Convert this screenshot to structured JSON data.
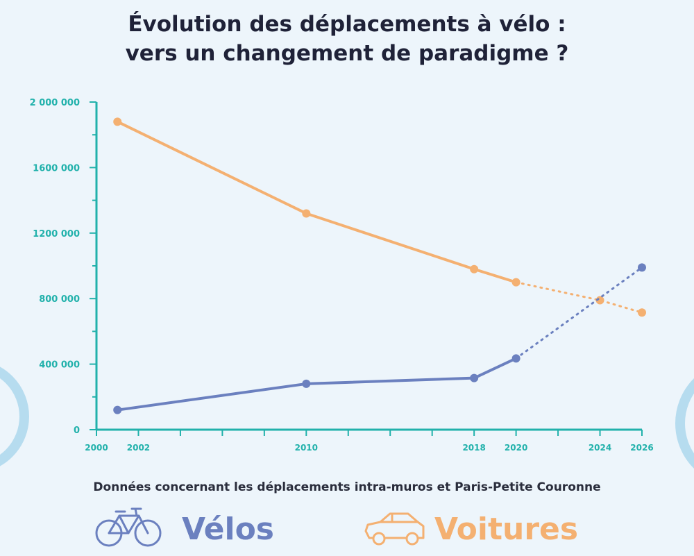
{
  "title_line1": "Évolution des déplacements à vélo :",
  "title_line2": "vers un changement de paradigme ?",
  "note": "Données concernant les déplacements intra-muros et Paris-Petite Couronne",
  "colors": {
    "background": "#edf5fb",
    "axis": "#21b1ab",
    "velos": "#6b80bf",
    "voitures": "#f4b071"
  },
  "legend": [
    {
      "label": "Vélos",
      "icon": "bicycle-icon",
      "color": "#6b80bf"
    },
    {
      "label": "Voitures",
      "icon": "car-icon",
      "color": "#f4b071"
    }
  ],
  "chart_data": {
    "type": "line",
    "x_ticks": [
      2000,
      2002,
      2010,
      2018,
      2020,
      2024,
      2026
    ],
    "y_ticks": [
      0,
      400000,
      800000,
      1200000,
      1600000,
      2000000
    ],
    "y_tick_labels": [
      "0",
      "400 000",
      "800 000",
      "1200 000",
      "1600 000",
      "2 000 000"
    ],
    "xlim": [
      2000,
      2026
    ],
    "ylim": [
      0,
      2000000
    ],
    "series": [
      {
        "name": "Voitures",
        "color": "#f4b071",
        "points": [
          [
            2001,
            1880000
          ],
          [
            2010,
            1320000
          ],
          [
            2018,
            980000
          ],
          [
            2020,
            900000
          ],
          [
            2024,
            790000
          ],
          [
            2026,
            715000
          ]
        ],
        "measured_until": 2020
      },
      {
        "name": "Vélos",
        "color": "#6b80bf",
        "points": [
          [
            2001,
            120000
          ],
          [
            2010,
            280000
          ],
          [
            2018,
            315000
          ],
          [
            2020,
            435000
          ],
          [
            2026,
            990000
          ]
        ],
        "measured_until": 2020
      }
    ]
  }
}
